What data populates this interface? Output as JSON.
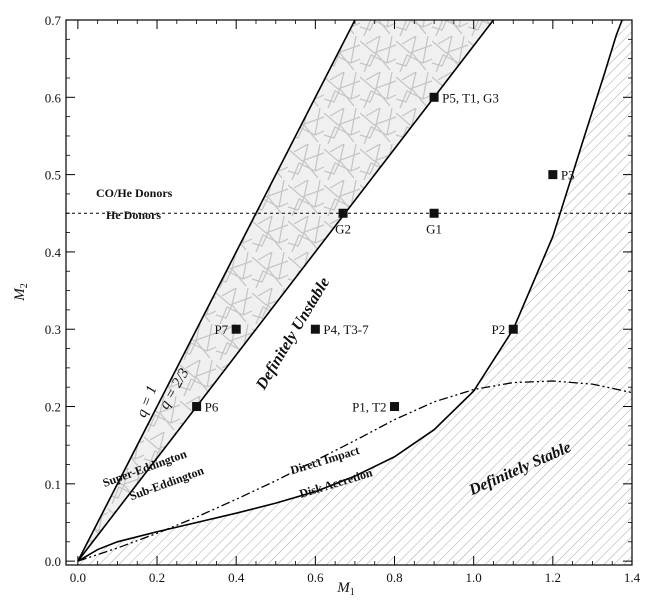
{
  "chart_data": {
    "type": "scatter",
    "title": "",
    "xlabel": "M",
    "xlabel_sub": "1",
    "ylabel": "M",
    "ylabel_sub": "2",
    "xlim": [
      -0.03,
      1.4
    ],
    "ylim": [
      -0.005,
      0.7
    ],
    "xticks": [
      0.0,
      0.2,
      0.4,
      0.6,
      0.8,
      1.0,
      1.2,
      1.4
    ],
    "xtick_labels": [
      "0.0",
      "0.2",
      "0.4",
      "0.6",
      "0.8",
      "1.0",
      "1.2",
      "1.4"
    ],
    "yticks": [
      0.0,
      0.1,
      0.2,
      0.3,
      0.4,
      0.5,
      0.6,
      0.7
    ],
    "ytick_labels": [
      "0.0",
      "0.1",
      "0.2",
      "0.3",
      "0.4",
      "0.5",
      "0.6",
      "0.7"
    ],
    "points": [
      {
        "name": "P1, T2",
        "x": 0.8,
        "y": 0.2,
        "label_pos": "left"
      },
      {
        "name": "P2",
        "x": 1.1,
        "y": 0.3,
        "label_pos": "left"
      },
      {
        "name": "P3",
        "x": 1.2,
        "y": 0.5,
        "label_pos": "right"
      },
      {
        "name": "P4, T3-7",
        "x": 0.6,
        "y": 0.3,
        "label_pos": "right"
      },
      {
        "name": "P5, T1, G3",
        "x": 0.9,
        "y": 0.6,
        "label_pos": "right"
      },
      {
        "name": "P6",
        "x": 0.3,
        "y": 0.2,
        "label_pos": "right"
      },
      {
        "name": "P7",
        "x": 0.4,
        "y": 0.3,
        "label_pos": "left"
      },
      {
        "name": "G1",
        "x": 0.9,
        "y": 0.45,
        "label_pos": "below"
      },
      {
        "name": "G2",
        "x": 0.67,
        "y": 0.45,
        "label_pos": "below"
      }
    ],
    "lines": {
      "q1": {
        "label": "q = 1",
        "slope": 1.0
      },
      "q23": {
        "label": "q = 2/3",
        "slope": 0.6667
      },
      "he_boundary": {
        "y": 0.45,
        "label_above": "CO/He Donors",
        "label_below": "He Donors"
      },
      "direct_impact": {
        "label_above": "Direct Impact",
        "label_below": "Disk Accretion",
        "x": [
          0.0,
          0.05,
          0.1,
          0.2,
          0.3,
          0.4,
          0.5,
          0.6,
          0.7,
          0.8,
          0.9,
          1.0,
          1.1,
          1.2,
          1.28,
          1.33,
          1.36,
          1.375
        ],
        "y": [
          0.0,
          0.015,
          0.025,
          0.038,
          0.05,
          0.062,
          0.075,
          0.09,
          0.11,
          0.135,
          0.17,
          0.22,
          0.3,
          0.42,
          0.55,
          0.63,
          0.68,
          0.7
        ]
      },
      "eddington": {
        "label_above": "Super-Eddington",
        "label_below": "Sub-Eddington",
        "x": [
          0.0,
          0.1,
          0.2,
          0.3,
          0.4,
          0.5,
          0.6,
          0.7,
          0.8,
          0.9,
          1.0,
          1.1,
          1.2,
          1.3,
          1.4
        ],
        "y": [
          0.0,
          0.017,
          0.036,
          0.057,
          0.08,
          0.104,
          0.13,
          0.156,
          0.183,
          0.206,
          0.222,
          0.231,
          0.233,
          0.229,
          0.218
        ]
      }
    },
    "regions": {
      "unstable": "Definitely Unstable",
      "stable": "Definitely Stable"
    }
  }
}
